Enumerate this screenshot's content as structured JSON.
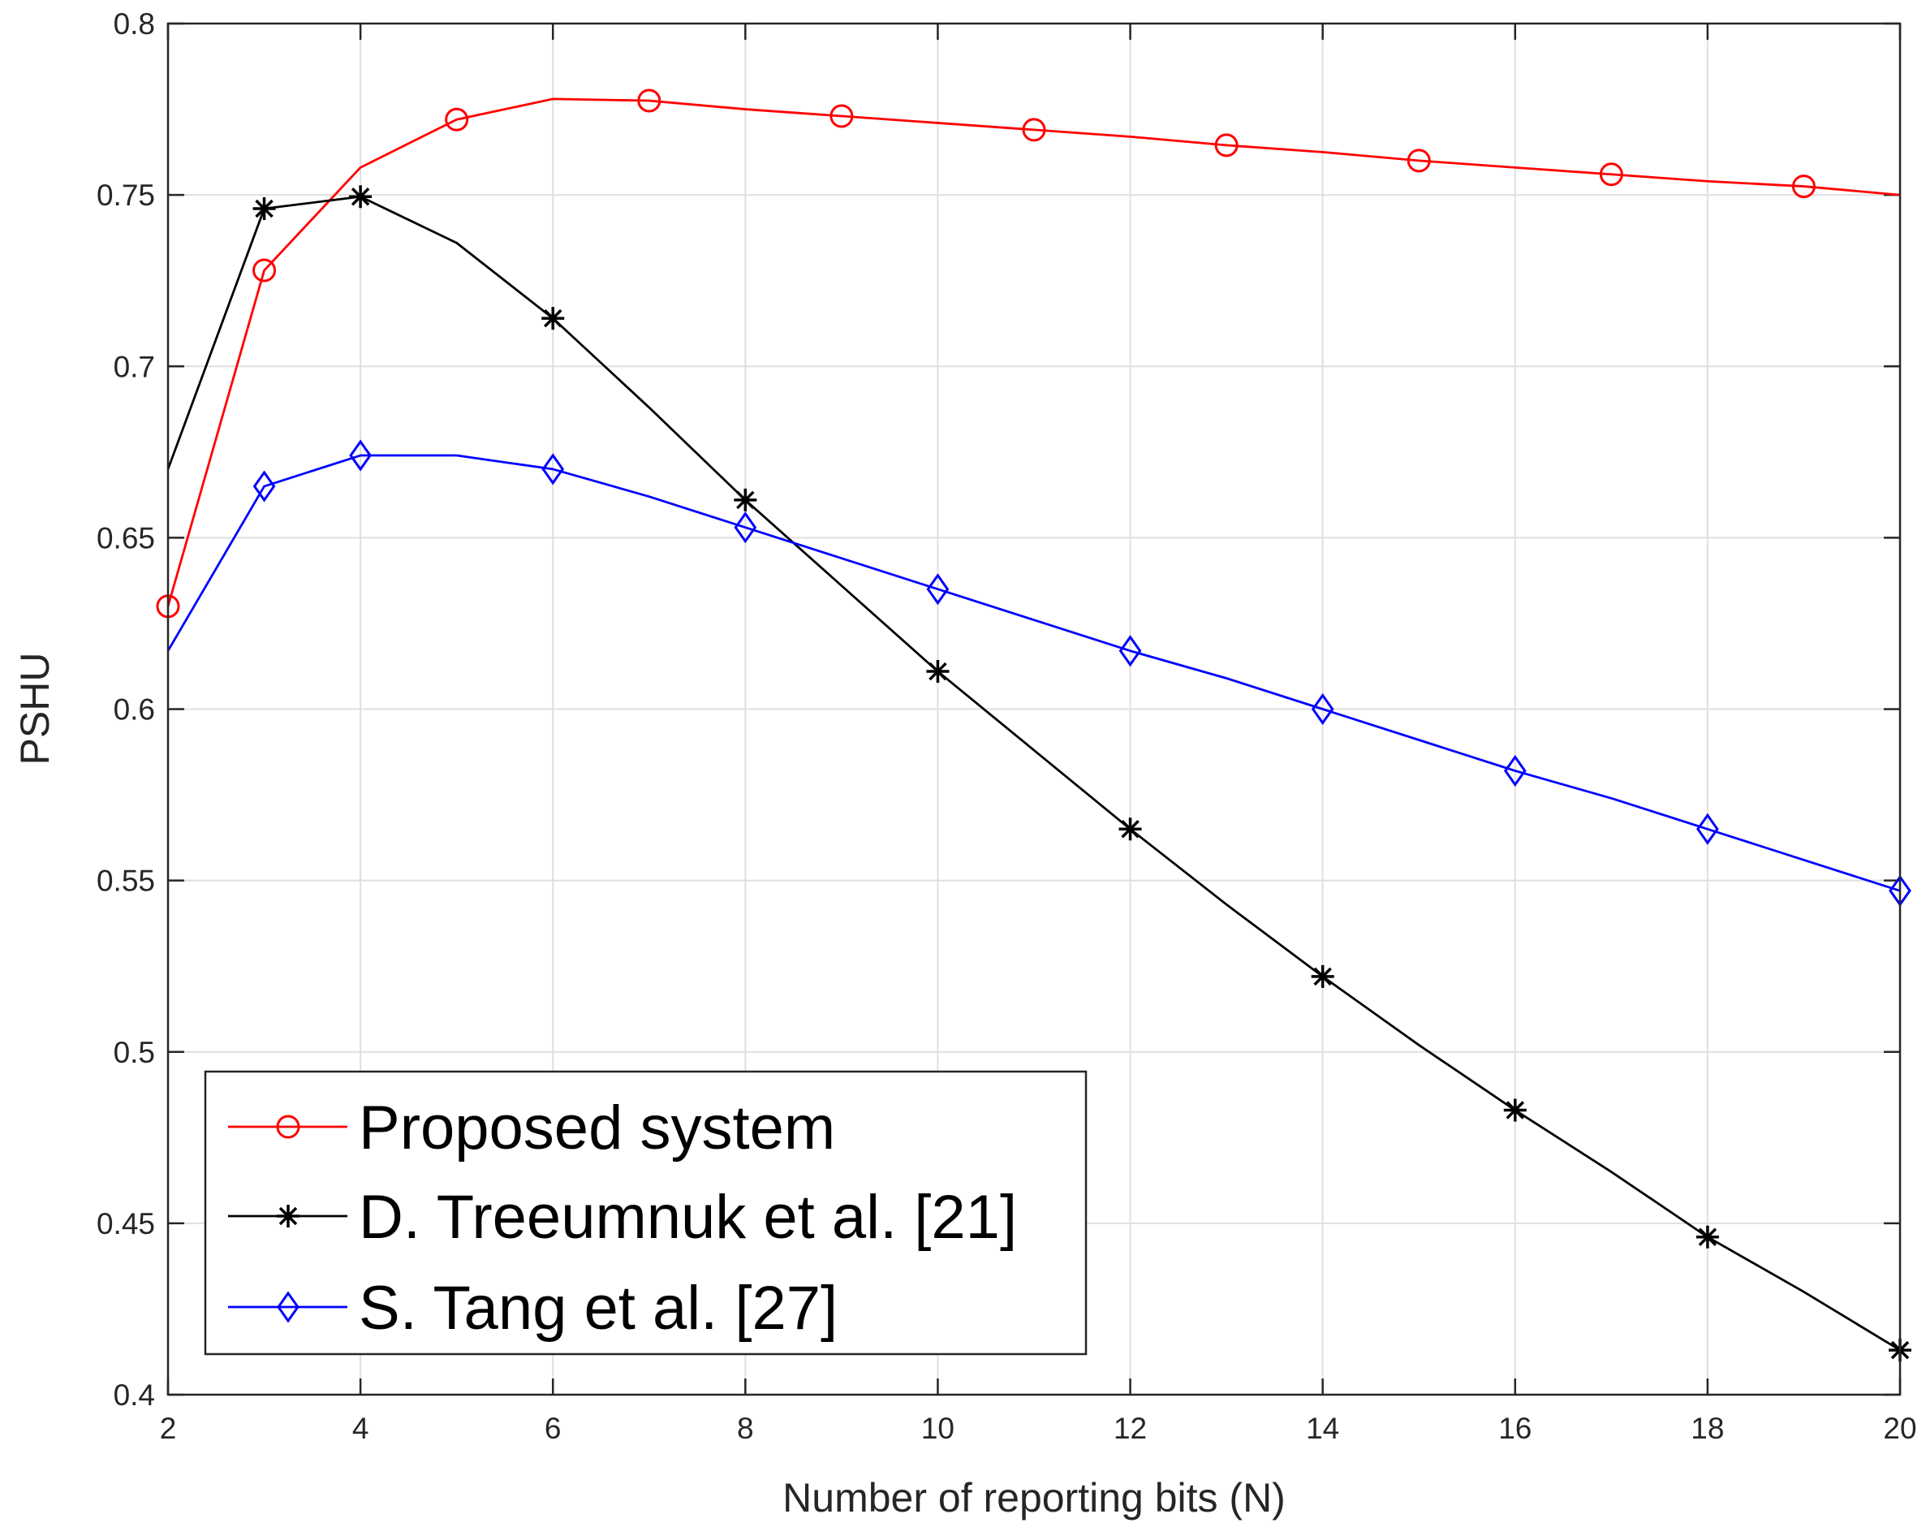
{
  "chart_data": {
    "type": "line",
    "title": "",
    "xlabel": "Number of reporting bits (N)",
    "ylabel": "PSHU",
    "xlim": [
      2,
      20
    ],
    "ylim": [
      0.4,
      0.8
    ],
    "xticks": [
      2,
      4,
      6,
      8,
      10,
      12,
      14,
      16,
      18,
      20
    ],
    "yticks": [
      0.4,
      0.45,
      0.5,
      0.55,
      0.6,
      0.65,
      0.7,
      0.75,
      0.8
    ],
    "xtick_labels": [
      "2",
      "4",
      "6",
      "8",
      "10",
      "12",
      "14",
      "16",
      "18",
      "20"
    ],
    "ytick_labels": [
      "0.4",
      "0.45",
      "0.5",
      "0.55",
      "0.6",
      "0.65",
      "0.7",
      "0.75",
      "0.8"
    ],
    "grid": true,
    "legend_position": "bottom-left",
    "series": [
      {
        "name": "Proposed system",
        "color": "#ff0000",
        "marker": "circle",
        "x": [
          2,
          3,
          4,
          5,
          6,
          7,
          8,
          9,
          10,
          11,
          12,
          13,
          14,
          15,
          16,
          17,
          18,
          19,
          20
        ],
        "y": [
          0.63,
          0.728,
          0.758,
          0.772,
          0.778,
          0.7775,
          0.775,
          0.773,
          0.771,
          0.769,
          0.767,
          0.7645,
          0.7625,
          0.76,
          0.758,
          0.756,
          0.754,
          0.7525,
          0.75
        ],
        "marker_x": [
          2,
          3,
          5,
          7,
          9,
          11,
          13,
          15,
          17,
          19
        ]
      },
      {
        "name": "D. Treeumnuk et al. [21]",
        "color": "#000000",
        "marker": "asterisk",
        "x": [
          2,
          3,
          4,
          5,
          6,
          7,
          8,
          9,
          10,
          11,
          12,
          13,
          14,
          15,
          16,
          17,
          18,
          19,
          20
        ],
        "y": [
          0.67,
          0.746,
          0.7495,
          0.736,
          0.714,
          0.688,
          0.661,
          0.636,
          0.611,
          0.588,
          0.565,
          0.543,
          0.522,
          0.502,
          0.483,
          0.465,
          0.446,
          0.43,
          0.413
        ],
        "marker_x": [
          3,
          4,
          6,
          8,
          10,
          12,
          14,
          16,
          18,
          20
        ]
      },
      {
        "name": "S. Tang et al. [27]",
        "color": "#0000ff",
        "marker": "diamond",
        "x": [
          2,
          3,
          4,
          5,
          6,
          7,
          8,
          9,
          10,
          11,
          12,
          13,
          14,
          15,
          16,
          17,
          18,
          19,
          20
        ],
        "y": [
          0.617,
          0.665,
          0.674,
          0.674,
          0.67,
          0.662,
          0.653,
          0.644,
          0.635,
          0.626,
          0.617,
          0.609,
          0.6,
          0.591,
          0.582,
          0.574,
          0.565,
          0.556,
          0.547
        ],
        "marker_x": [
          3,
          4,
          6,
          8,
          10,
          12,
          14,
          16,
          18,
          20
        ]
      }
    ]
  }
}
